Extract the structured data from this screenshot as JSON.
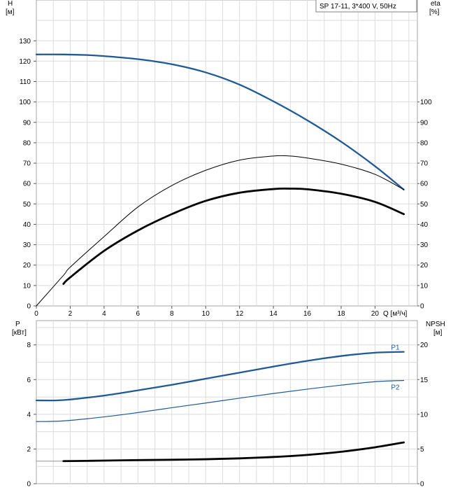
{
  "chart_data": [
    {
      "type": "line",
      "legend": "SP 17-11, 3*400 V, 50Hz",
      "grid": true,
      "xlabel": "Q [м³/ч]",
      "xlim": [
        0,
        22.5
      ],
      "xticks": [
        "0",
        "2",
        "4",
        "6",
        "8",
        "10",
        "12",
        "14",
        "16",
        "18",
        "20"
      ],
      "ylabel": "H",
      "ylabel_unit": "[м]",
      "ylim": [
        0,
        150
      ],
      "yticks": [
        "0",
        "10",
        "20",
        "30",
        "40",
        "50",
        "60",
        "70",
        "80",
        "90",
        "100",
        "110",
        "120",
        "130"
      ],
      "y2label": "eta",
      "y2label_unit": "[%]",
      "y2ticks": [
        "0",
        "10",
        "20",
        "30",
        "40",
        "50",
        "60",
        "70",
        "80",
        "90",
        "100"
      ],
      "series": [
        {
          "color": "#1f5a96",
          "width": 2.3,
          "x": [
            0,
            1.6,
            3,
            4,
            6,
            8,
            10,
            12,
            14,
            16,
            18,
            20,
            21.7
          ],
          "y": [
            123.3,
            123.3,
            123.0,
            122.5,
            121.0,
            118.5,
            114.5,
            108.5,
            100.3,
            91.0,
            80.5,
            68.5,
            57.0
          ]
        },
        {
          "color": "#000000",
          "width": 1.0,
          "x": [
            0,
            1.6,
            2,
            4,
            6,
            8,
            10,
            12,
            14,
            15,
            16,
            18,
            20,
            21.7
          ],
          "y": [
            0,
            15,
            19,
            34,
            48.5,
            59,
            66.5,
            71.5,
            73.5,
            73.5,
            72.5,
            69.5,
            64.5,
            57.0
          ]
        },
        {
          "color": "#000000",
          "width": 2.8,
          "x": [
            1.6,
            2,
            4,
            6,
            8,
            10,
            12,
            14,
            15,
            16,
            18,
            20,
            21.7
          ],
          "y": [
            10.8,
            14,
            27,
            37,
            45,
            51.5,
            55.5,
            57.3,
            57.5,
            57.2,
            55,
            51,
            45
          ]
        }
      ]
    },
    {
      "type": "line",
      "grid": true,
      "xlim": [
        0,
        22.5
      ],
      "ylabel": "P",
      "ylabel_unit": "[кВт]",
      "ylim": [
        0,
        9.4
      ],
      "yticks": [
        "0",
        "2",
        "4",
        "6",
        "8"
      ],
      "y2label": "NPSH",
      "y2label_unit": "[м]",
      "y2ticks": [
        "0",
        "5",
        "10",
        "15",
        "20"
      ],
      "series": [
        {
          "name": "P1",
          "color": "#1f5a96",
          "width": 2.3,
          "x": [
            0,
            1.6,
            4,
            6,
            8,
            10,
            12,
            14,
            16,
            18,
            20,
            21.7
          ],
          "y": [
            4.8,
            4.82,
            5.08,
            5.38,
            5.7,
            6.05,
            6.4,
            6.75,
            7.08,
            7.36,
            7.55,
            7.6
          ]
        },
        {
          "name": "P2",
          "color": "#1f5a96",
          "width": 1.2,
          "x": [
            0,
            1.6,
            4,
            6,
            8,
            10,
            12,
            14,
            16,
            18,
            20,
            21.7
          ],
          "y": [
            3.58,
            3.62,
            3.85,
            4.1,
            4.38,
            4.65,
            4.93,
            5.2,
            5.45,
            5.68,
            5.88,
            5.95
          ]
        },
        {
          "color": "#a6a6a6",
          "width": 1.2,
          "x": [
            0,
            1.6
          ],
          "y": [
            1.3,
            1.3
          ]
        },
        {
          "color": "#000000",
          "width": 2.8,
          "x": [
            1.6,
            4,
            6,
            8,
            10,
            12,
            14,
            16,
            18,
            20,
            21.7
          ],
          "y": [
            1.3,
            1.33,
            1.36,
            1.38,
            1.41,
            1.46,
            1.54,
            1.66,
            1.84,
            2.1,
            2.38
          ]
        }
      ]
    }
  ]
}
